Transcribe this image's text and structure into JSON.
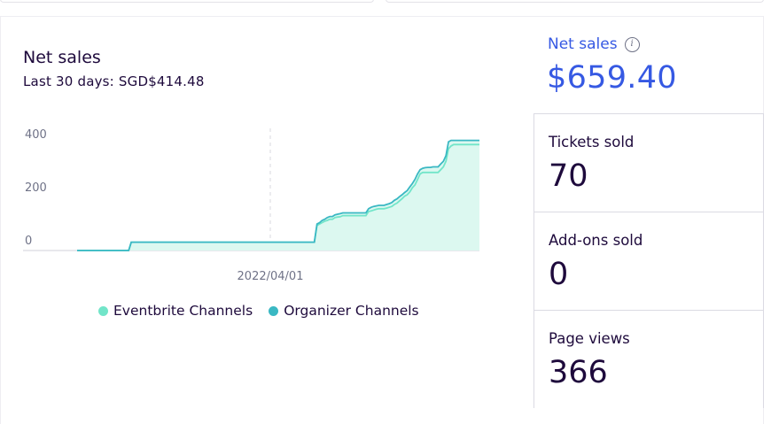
{
  "chart_data": {
    "type": "area",
    "title": "Net sales",
    "subtitle": "Last 30 days: SGD$414.48",
    "x_tick_label": "2022/04/01",
    "y_ticks": [
      0,
      200,
      400
    ],
    "ylim": [
      0,
      460
    ],
    "grid": false,
    "legend_position": "bottom",
    "series": [
      {
        "name": "Eventbrite Channels",
        "color": "#72e5c9",
        "values": [
          0,
          0,
          0,
          0,
          0,
          0,
          0,
          0,
          0,
          0,
          0,
          0,
          0,
          0,
          0,
          0,
          0,
          0,
          0,
          0,
          0,
          30,
          30,
          30,
          30,
          30,
          30,
          30,
          30,
          30,
          30,
          30,
          30,
          30,
          30,
          30,
          30,
          30,
          30,
          30,
          30,
          30,
          30,
          30,
          30,
          30,
          30,
          30,
          30,
          30,
          30,
          30,
          30,
          30,
          30,
          30,
          30,
          30,
          30,
          30,
          30,
          30,
          30,
          30,
          30,
          30,
          30,
          30,
          30,
          30,
          30,
          30,
          30,
          30,
          30,
          30,
          30,
          30,
          30,
          30,
          30,
          30,
          30,
          30,
          30,
          30,
          30,
          30,
          30,
          30,
          30,
          30,
          30,
          90,
          95,
          100,
          105,
          108,
          112,
          112,
          118,
          120,
          121,
          125,
          125,
          125,
          125,
          125,
          125,
          125,
          125,
          125,
          125,
          140,
          142,
          145,
          148,
          150,
          150,
          150,
          152,
          155,
          158,
          165,
          170,
          178,
          186,
          195,
          200,
          210,
          225,
          235,
          255,
          275,
          280,
          280,
          280,
          280,
          280,
          280,
          280,
          290,
          300,
          320,
          365,
          375,
          380,
          380,
          380,
          380,
          380,
          380,
          380,
          380,
          380,
          380,
          380
        ]
      },
      {
        "name": "Organizer Channels",
        "color": "#3ab8c3",
        "values": [
          0,
          0,
          0,
          0,
          0,
          0,
          0,
          0,
          0,
          0,
          0,
          0,
          0,
          0,
          0,
          0,
          0,
          0,
          0,
          0,
          0,
          30,
          30,
          30,
          30,
          30,
          30,
          30,
          30,
          30,
          30,
          30,
          30,
          30,
          30,
          30,
          30,
          30,
          30,
          30,
          30,
          30,
          30,
          30,
          30,
          30,
          30,
          30,
          30,
          30,
          30,
          30,
          30,
          30,
          30,
          30,
          30,
          30,
          30,
          30,
          30,
          30,
          30,
          30,
          30,
          30,
          30,
          30,
          30,
          30,
          30,
          30,
          30,
          30,
          30,
          30,
          30,
          30,
          30,
          30,
          30,
          30,
          30,
          30,
          30,
          30,
          30,
          30,
          30,
          30,
          30,
          30,
          30,
          95,
          100,
          108,
          112,
          118,
          122,
          122,
          128,
          130,
          132,
          135,
          135,
          135,
          135,
          135,
          135,
          135,
          135,
          135,
          135,
          150,
          155,
          158,
          160,
          162,
          162,
          162,
          165,
          168,
          172,
          180,
          185,
          193,
          200,
          208,
          215,
          228,
          240,
          255,
          275,
          290,
          295,
          297,
          298,
          298,
          300,
          300,
          300,
          310,
          320,
          340,
          390,
          395,
          395,
          395,
          395,
          395,
          395,
          395,
          395,
          395,
          395,
          395,
          395
        ]
      }
    ]
  },
  "stats": {
    "net_sales_label": "Net sales",
    "net_sales_info_icon": "info-icon",
    "net_sales_value": "$659.40",
    "tickets_label": "Tickets sold",
    "tickets_value": "70",
    "addons_label": "Add-ons sold",
    "addons_value": "0",
    "page_views_label": "Page views",
    "page_views_value": "366"
  },
  "colors": {
    "accent_blue": "#3659e3",
    "text_dark": "#1e0a3c",
    "muted": "#6f7287",
    "eventbrite_channels": "#72e5c9",
    "organizer_channels": "#3ab8c3",
    "area_fill": "#dcf8f0"
  }
}
